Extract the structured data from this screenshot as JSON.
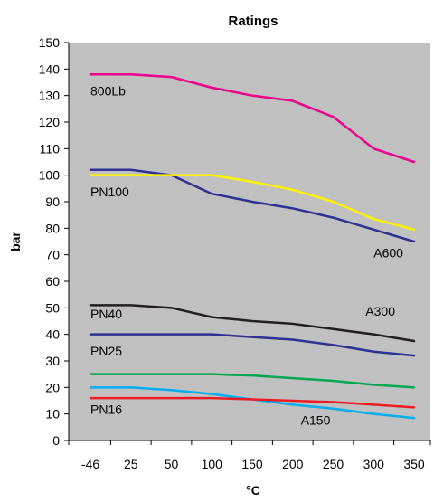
{
  "chart_data": {
    "type": "line",
    "title": "Ratings",
    "xlabel": "°C",
    "ylabel": "bar",
    "x_ticks": [
      "-46",
      "25",
      "50",
      "100",
      "150",
      "200",
      "250",
      "300",
      "350"
    ],
    "y_ticks": [
      "0",
      "10",
      "20",
      "30",
      "40",
      "50",
      "60",
      "70",
      "80",
      "90",
      "100",
      "110",
      "120",
      "130",
      "140",
      "150"
    ],
    "ylim": [
      0,
      150
    ],
    "grid": false,
    "legend": "none",
    "colors": {
      "plot_background": "#c0c0c0",
      "axis": "#000000"
    },
    "series": [
      {
        "name": "800Lb",
        "color": "#ec008c",
        "points": [
          [
            -46,
            138
          ],
          [
            25,
            138
          ],
          [
            50,
            137
          ],
          [
            100,
            133
          ],
          [
            150,
            130
          ],
          [
            200,
            128
          ],
          [
            250,
            122
          ],
          [
            300,
            110
          ],
          [
            350,
            105
          ]
        ]
      },
      {
        "name": "A600",
        "color": "#2e3192",
        "points": [
          [
            -46,
            102
          ],
          [
            25,
            102
          ],
          [
            50,
            100
          ],
          [
            100,
            93
          ],
          [
            150,
            90
          ],
          [
            200,
            87.5
          ],
          [
            250,
            84
          ],
          [
            300,
            79.5
          ],
          [
            350,
            75
          ]
        ]
      },
      {
        "name": "PN100",
        "color": "#fff200",
        "points": [
          [
            -46,
            100
          ],
          [
            25,
            100
          ],
          [
            50,
            100
          ],
          [
            100,
            100
          ],
          [
            150,
            97.5
          ],
          [
            200,
            94.5
          ],
          [
            250,
            90
          ],
          [
            300,
            83.5
          ],
          [
            350,
            79.5
          ]
        ]
      },
      {
        "name": "PN40",
        "color": "#231f20",
        "points": [
          [
            -46,
            51
          ],
          [
            25,
            51
          ],
          [
            50,
            50
          ],
          [
            100,
            46.5
          ],
          [
            150,
            45
          ],
          [
            200,
            44
          ],
          [
            250,
            42
          ],
          [
            300,
            40
          ],
          [
            350,
            37.5
          ]
        ]
      },
      {
        "name": "PN25",
        "color": "#2e3192",
        "points": [
          [
            -46,
            40
          ],
          [
            25,
            40
          ],
          [
            50,
            40
          ],
          [
            100,
            40
          ],
          [
            150,
            39
          ],
          [
            200,
            38
          ],
          [
            250,
            36
          ],
          [
            300,
            33.5
          ],
          [
            350,
            32
          ]
        ]
      },
      {
        "name": "A300",
        "color": "#00a651",
        "points": [
          [
            -46,
            25
          ],
          [
            25,
            25
          ],
          [
            50,
            25
          ],
          [
            100,
            25
          ],
          [
            150,
            24.5
          ],
          [
            200,
            23.5
          ],
          [
            250,
            22.5
          ],
          [
            300,
            21
          ],
          [
            350,
            20
          ]
        ]
      },
      {
        "name": "A150",
        "color": "#00aeef",
        "points": [
          [
            -46,
            20
          ],
          [
            25,
            20
          ],
          [
            50,
            19
          ],
          [
            100,
            17.5
          ],
          [
            150,
            15.5
          ],
          [
            200,
            13.5
          ],
          [
            250,
            12
          ],
          [
            300,
            10
          ],
          [
            350,
            8.5
          ]
        ]
      },
      {
        "name": "PN16",
        "color": "#ed1c24",
        "points": [
          [
            -46,
            16
          ],
          [
            25,
            16
          ],
          [
            50,
            16
          ],
          [
            100,
            16
          ],
          [
            150,
            15.5
          ],
          [
            200,
            15
          ],
          [
            250,
            14.5
          ],
          [
            300,
            13.5
          ],
          [
            350,
            12.5
          ]
        ]
      }
    ],
    "annotations": [
      {
        "text": "800Lb",
        "series": "800Lb",
        "anchor": [
          -46,
          130
        ]
      },
      {
        "text": "PN100",
        "series": "PN100",
        "anchor": [
          -46,
          92
        ]
      },
      {
        "text": "A600",
        "series": "A600",
        "anchor": [
          300,
          69
        ]
      },
      {
        "text": "PN40",
        "series": "PN40",
        "anchor": [
          -46,
          46
        ]
      },
      {
        "text": "A300",
        "series": "PN40",
        "anchor": [
          290,
          47
        ]
      },
      {
        "text": "PN25",
        "series": "PN25",
        "anchor": [
          -46,
          32
        ]
      },
      {
        "text": "PN16",
        "series": "PN16",
        "anchor": [
          -46,
          10
        ]
      },
      {
        "text": "A150",
        "series": "A150",
        "anchor": [
          210,
          6
        ]
      }
    ]
  }
}
